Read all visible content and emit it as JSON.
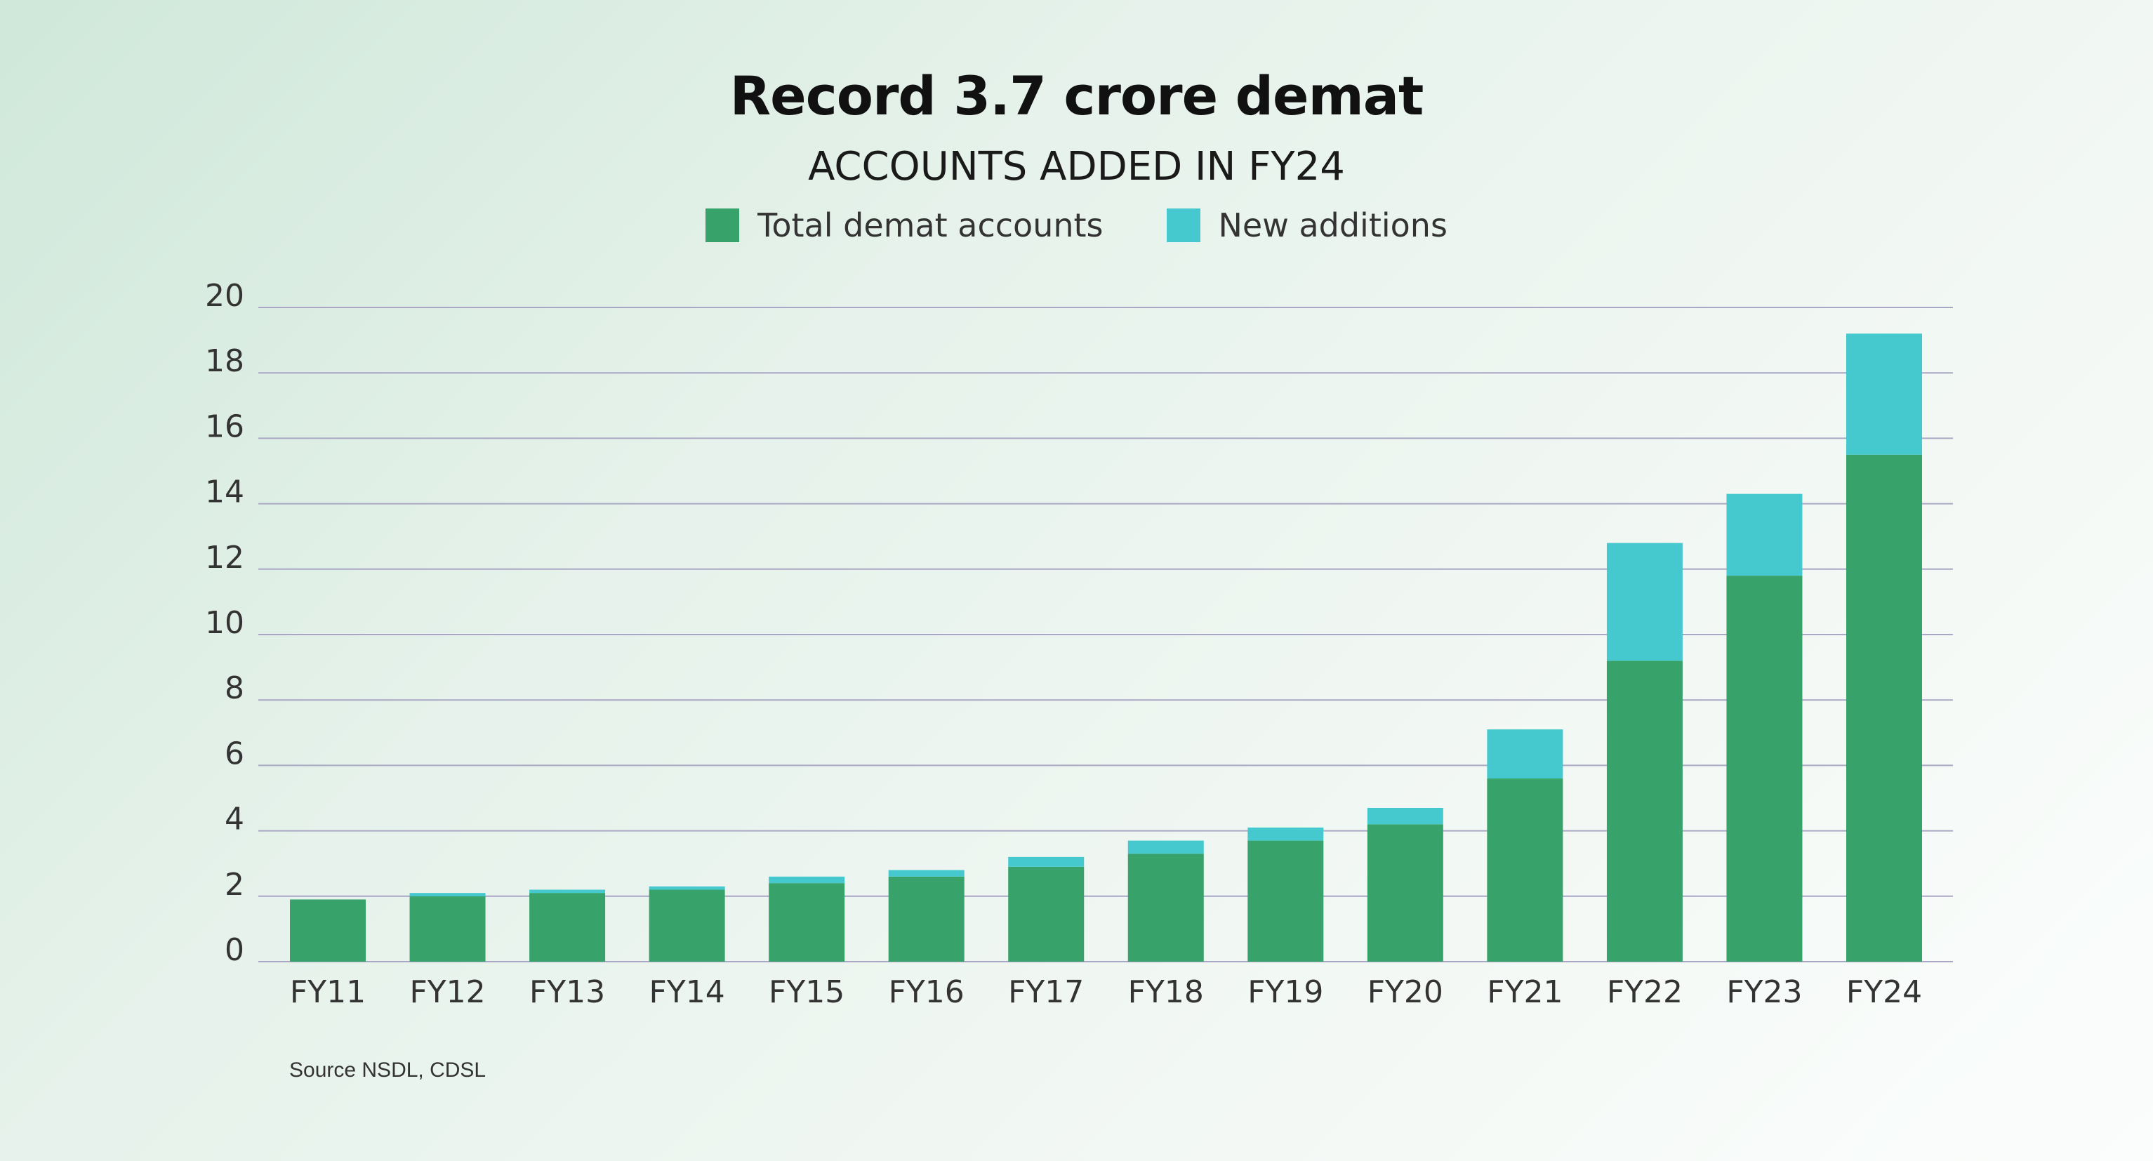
{
  "chart_data": {
    "type": "bar",
    "stacked": true,
    "title": "Record 3.7 crore demat",
    "subtitle": "ACCOUNTS ADDED IN FY24",
    "categories": [
      "FY11",
      "FY12",
      "FY13",
      "FY14",
      "FY15",
      "FY16",
      "FY17",
      "FY18",
      "FY19",
      "FY20",
      "FY21",
      "FY22",
      "FY23",
      "FY24"
    ],
    "series": [
      {
        "name": "Total demat accounts",
        "color": "#37a269",
        "values": [
          1.9,
          2.0,
          2.1,
          2.2,
          2.4,
          2.6,
          2.9,
          3.3,
          3.7,
          4.2,
          5.6,
          9.2,
          11.8,
          15.5
        ]
      },
      {
        "name": "New additions",
        "color": "#45c9cf",
        "values": [
          0,
          0.1,
          0.1,
          0.1,
          0.2,
          0.2,
          0.3,
          0.4,
          0.4,
          0.5,
          1.5,
          3.6,
          2.5,
          3.7
        ]
      }
    ],
    "y_ticks": [
      "0",
      "2",
      "4",
      "6",
      "8",
      "10",
      "12",
      "14",
      "16",
      "18",
      "20"
    ],
    "ylim": [
      0,
      20
    ],
    "grid": true,
    "legend_position": "top-center",
    "source": "Source NSDL, CDSL",
    "colors": {
      "grid": "#a9a7c4",
      "tick_text": "#333333"
    }
  }
}
